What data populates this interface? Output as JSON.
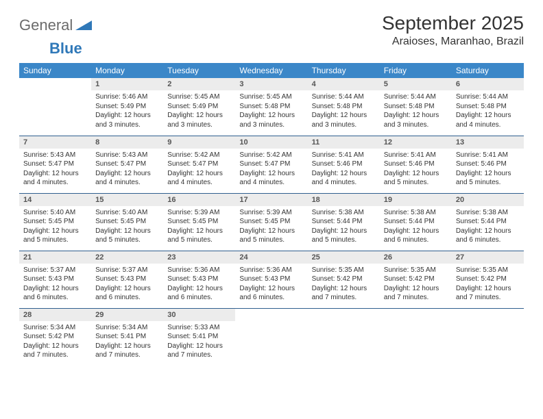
{
  "brand": {
    "general": "General",
    "blue": "Blue"
  },
  "title": "September 2025",
  "location": "Araioses, Maranhao, Brazil",
  "colors": {
    "header_bg": "#3b87c8",
    "header_text": "#ffffff",
    "row_divider": "#2f5e8e",
    "daynum_bg": "#ececec",
    "text": "#333333",
    "logo_gray": "#6b6b6b",
    "logo_blue": "#2f78b8"
  },
  "weekdays": [
    "Sunday",
    "Monday",
    "Tuesday",
    "Wednesday",
    "Thursday",
    "Friday",
    "Saturday"
  ],
  "first_weekday_index": 1,
  "days": [
    {
      "n": 1,
      "sunrise": "5:46 AM",
      "sunset": "5:49 PM",
      "daylight": "12 hours and 3 minutes."
    },
    {
      "n": 2,
      "sunrise": "5:45 AM",
      "sunset": "5:49 PM",
      "daylight": "12 hours and 3 minutes."
    },
    {
      "n": 3,
      "sunrise": "5:45 AM",
      "sunset": "5:48 PM",
      "daylight": "12 hours and 3 minutes."
    },
    {
      "n": 4,
      "sunrise": "5:44 AM",
      "sunset": "5:48 PM",
      "daylight": "12 hours and 3 minutes."
    },
    {
      "n": 5,
      "sunrise": "5:44 AM",
      "sunset": "5:48 PM",
      "daylight": "12 hours and 3 minutes."
    },
    {
      "n": 6,
      "sunrise": "5:44 AM",
      "sunset": "5:48 PM",
      "daylight": "12 hours and 4 minutes."
    },
    {
      "n": 7,
      "sunrise": "5:43 AM",
      "sunset": "5:47 PM",
      "daylight": "12 hours and 4 minutes."
    },
    {
      "n": 8,
      "sunrise": "5:43 AM",
      "sunset": "5:47 PM",
      "daylight": "12 hours and 4 minutes."
    },
    {
      "n": 9,
      "sunrise": "5:42 AM",
      "sunset": "5:47 PM",
      "daylight": "12 hours and 4 minutes."
    },
    {
      "n": 10,
      "sunrise": "5:42 AM",
      "sunset": "5:47 PM",
      "daylight": "12 hours and 4 minutes."
    },
    {
      "n": 11,
      "sunrise": "5:41 AM",
      "sunset": "5:46 PM",
      "daylight": "12 hours and 4 minutes."
    },
    {
      "n": 12,
      "sunrise": "5:41 AM",
      "sunset": "5:46 PM",
      "daylight": "12 hours and 5 minutes."
    },
    {
      "n": 13,
      "sunrise": "5:41 AM",
      "sunset": "5:46 PM",
      "daylight": "12 hours and 5 minutes."
    },
    {
      "n": 14,
      "sunrise": "5:40 AM",
      "sunset": "5:45 PM",
      "daylight": "12 hours and 5 minutes."
    },
    {
      "n": 15,
      "sunrise": "5:40 AM",
      "sunset": "5:45 PM",
      "daylight": "12 hours and 5 minutes."
    },
    {
      "n": 16,
      "sunrise": "5:39 AM",
      "sunset": "5:45 PM",
      "daylight": "12 hours and 5 minutes."
    },
    {
      "n": 17,
      "sunrise": "5:39 AM",
      "sunset": "5:45 PM",
      "daylight": "12 hours and 5 minutes."
    },
    {
      "n": 18,
      "sunrise": "5:38 AM",
      "sunset": "5:44 PM",
      "daylight": "12 hours and 5 minutes."
    },
    {
      "n": 19,
      "sunrise": "5:38 AM",
      "sunset": "5:44 PM",
      "daylight": "12 hours and 6 minutes."
    },
    {
      "n": 20,
      "sunrise": "5:38 AM",
      "sunset": "5:44 PM",
      "daylight": "12 hours and 6 minutes."
    },
    {
      "n": 21,
      "sunrise": "5:37 AM",
      "sunset": "5:43 PM",
      "daylight": "12 hours and 6 minutes."
    },
    {
      "n": 22,
      "sunrise": "5:37 AM",
      "sunset": "5:43 PM",
      "daylight": "12 hours and 6 minutes."
    },
    {
      "n": 23,
      "sunrise": "5:36 AM",
      "sunset": "5:43 PM",
      "daylight": "12 hours and 6 minutes."
    },
    {
      "n": 24,
      "sunrise": "5:36 AM",
      "sunset": "5:43 PM",
      "daylight": "12 hours and 6 minutes."
    },
    {
      "n": 25,
      "sunrise": "5:35 AM",
      "sunset": "5:42 PM",
      "daylight": "12 hours and 7 minutes."
    },
    {
      "n": 26,
      "sunrise": "5:35 AM",
      "sunset": "5:42 PM",
      "daylight": "12 hours and 7 minutes."
    },
    {
      "n": 27,
      "sunrise": "5:35 AM",
      "sunset": "5:42 PM",
      "daylight": "12 hours and 7 minutes."
    },
    {
      "n": 28,
      "sunrise": "5:34 AM",
      "sunset": "5:42 PM",
      "daylight": "12 hours and 7 minutes."
    },
    {
      "n": 29,
      "sunrise": "5:34 AM",
      "sunset": "5:41 PM",
      "daylight": "12 hours and 7 minutes."
    },
    {
      "n": 30,
      "sunrise": "5:33 AM",
      "sunset": "5:41 PM",
      "daylight": "12 hours and 7 minutes."
    }
  ],
  "labels": {
    "sunrise": "Sunrise: ",
    "sunset": "Sunset: ",
    "daylight": "Daylight: "
  }
}
